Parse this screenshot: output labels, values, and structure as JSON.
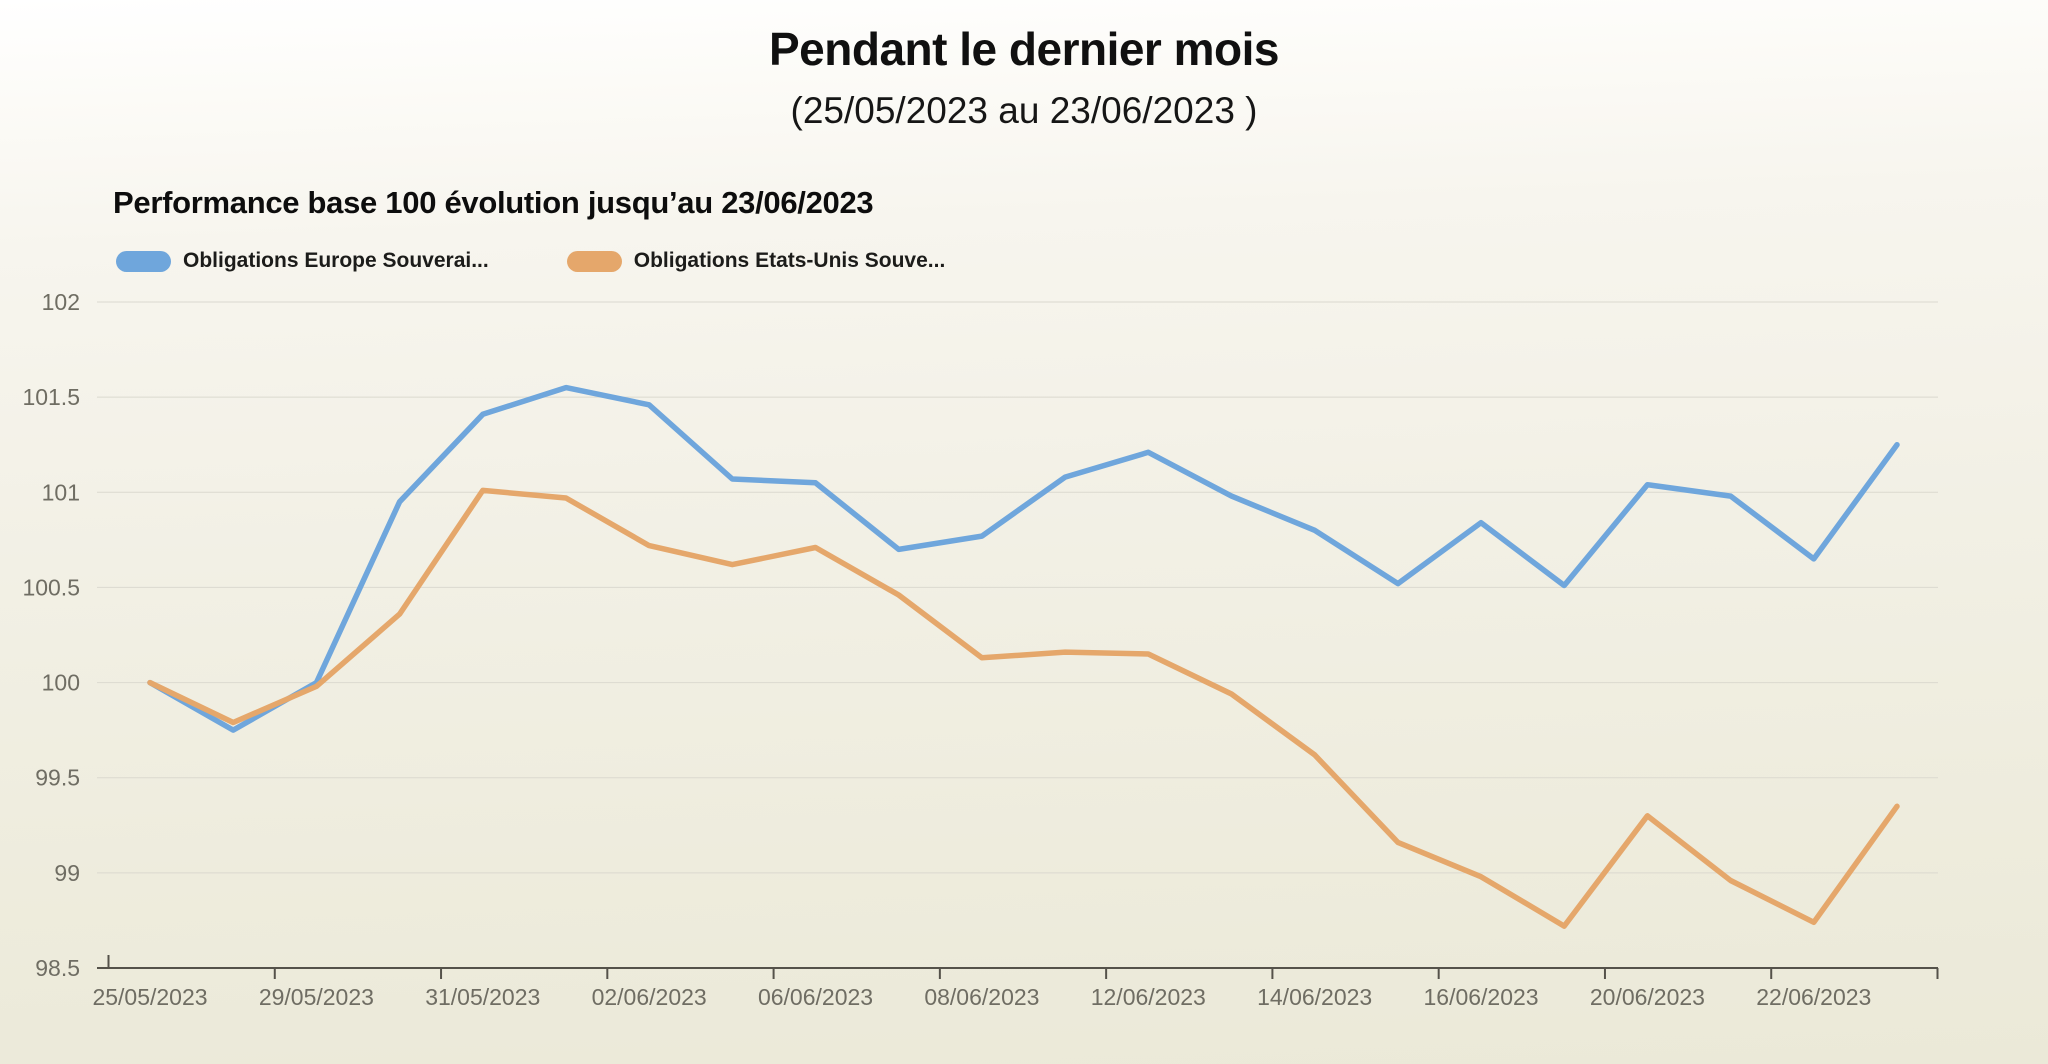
{
  "header": {
    "title": "Pendant le dernier mois",
    "subtitle": "(25/05/2023 au 23/06/2023 )"
  },
  "chart": {
    "heading": "Performance base 100 évolution jusqu’au 23/06/2023"
  },
  "chart_data": {
    "type": "line",
    "title": "Performance base 100 évolution jusqu’au 23/06/2023",
    "x": [
      "25/05/2023",
      "26/05/2023",
      "29/05/2023",
      "30/05/2023",
      "31/05/2023",
      "01/06/2023",
      "02/06/2023",
      "05/06/2023",
      "06/06/2023",
      "07/06/2023",
      "08/06/2023",
      "09/06/2023",
      "12/06/2023",
      "13/06/2023",
      "14/06/2023",
      "15/06/2023",
      "16/06/2023",
      "19/06/2023",
      "20/06/2023",
      "21/06/2023",
      "22/06/2023",
      "23/06/2023"
    ],
    "xtick_labels": [
      "25/05/2023",
      "29/05/2023",
      "31/05/2023",
      "02/06/2023",
      "06/06/2023",
      "08/06/2023",
      "12/06/2023",
      "14/06/2023",
      "16/06/2023",
      "20/06/2023",
      "22/06/2023"
    ],
    "xtick_every": 2,
    "series": [
      {
        "name": "Obligations Europe Souverai...",
        "color": "#6FA6DC",
        "values": [
          100.0,
          99.75,
          100.0,
          100.95,
          101.41,
          101.55,
          101.46,
          101.07,
          101.05,
          100.7,
          100.77,
          101.08,
          101.21,
          100.98,
          100.8,
          100.52,
          100.84,
          100.51,
          101.04,
          100.98,
          100.65,
          101.25
        ]
      },
      {
        "name": "Obligations Etats-Unis Souve...",
        "color": "#E5A76B",
        "values": [
          100.0,
          99.79,
          99.98,
          100.36,
          101.01,
          100.97,
          100.72,
          100.62,
          100.71,
          100.46,
          100.13,
          100.16,
          100.15,
          99.94,
          99.62,
          99.16,
          98.98,
          98.72,
          99.3,
          98.96,
          98.74,
          99.35
        ]
      }
    ],
    "ylim": [
      98.5,
      102
    ],
    "yticks": [
      98.5,
      99,
      99.5,
      100,
      100.5,
      101,
      101.5,
      102
    ],
    "grid": true,
    "legend_position": "top-left"
  }
}
